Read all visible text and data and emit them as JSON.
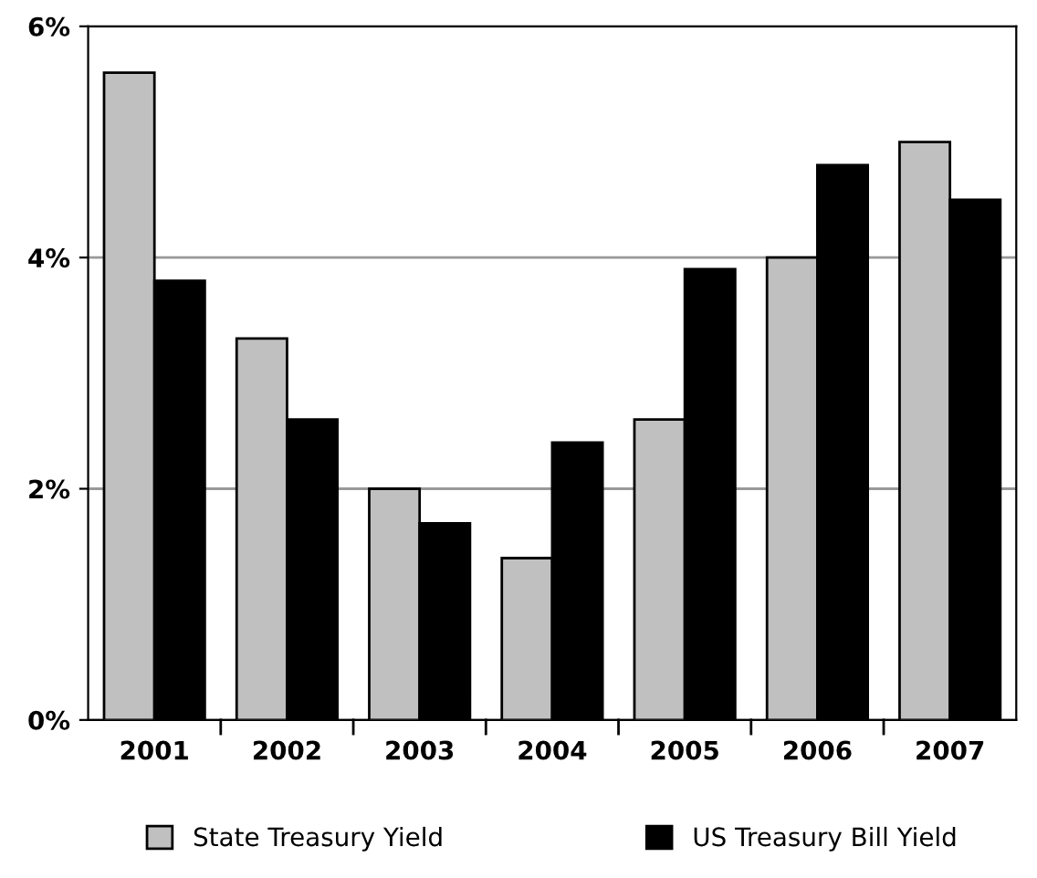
{
  "chart_data": {
    "type": "bar",
    "categories": [
      "2001",
      "2002",
      "2003",
      "2004",
      "2005",
      "2006",
      "2007"
    ],
    "series": [
      {
        "name": "State Treasury Yield",
        "color": "#c0c0c0",
        "values": [
          5.6,
          3.3,
          2.0,
          1.4,
          2.6,
          4.0,
          5.0
        ]
      },
      {
        "name": "US Treasury Bill Yield",
        "color": "#000000",
        "values": [
          3.8,
          2.6,
          1.7,
          2.4,
          3.9,
          4.8,
          4.5
        ]
      }
    ],
    "ylim": [
      0,
      6
    ],
    "yticks": [
      {
        "value": 0,
        "label": "0%"
      },
      {
        "value": 2,
        "label": "2%"
      },
      {
        "value": 4,
        "label": "4%"
      },
      {
        "value": 6,
        "label": "6%"
      }
    ],
    "grid": "y",
    "legend": "bottom"
  }
}
